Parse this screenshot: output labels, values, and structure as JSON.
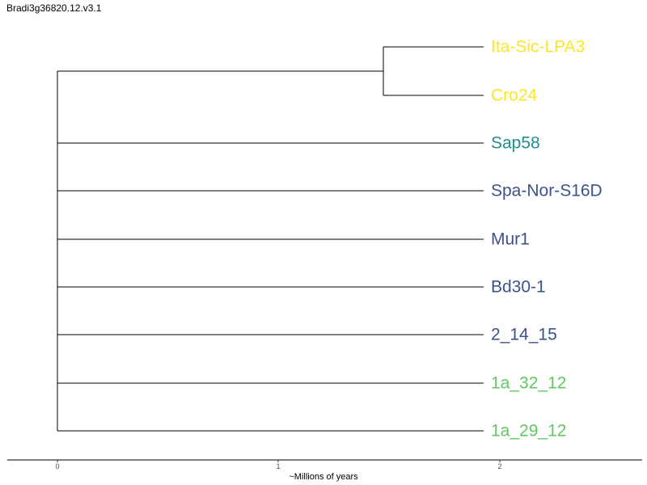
{
  "title": "Bradi3g36820.12.v3.1",
  "axis": {
    "label": "~Millions of years",
    "ticks": [
      "0",
      "1",
      "2"
    ]
  },
  "colors": {
    "yellow": "#fde725",
    "teal": "#21918c",
    "blue": "#3b528b",
    "green": "#5ec962",
    "branch": "#000000"
  },
  "tips": [
    {
      "label": "Ita-Sic-LPA3",
      "color": "#fde725"
    },
    {
      "label": "Cro24",
      "color": "#fde725"
    },
    {
      "label": "Sap58",
      "color": "#21918c"
    },
    {
      "label": "Spa-Nor-S16D",
      "color": "#3b528b"
    },
    {
      "label": "Mur1",
      "color": "#3b528b"
    },
    {
      "label": "Bd30-1",
      "color": "#3b528b"
    },
    {
      "label": "2_14_15",
      "color": "#3b528b"
    },
    {
      "label": "1a_32_12",
      "color": "#5ec962"
    },
    {
      "label": "1a_29_12",
      "color": "#5ec962"
    }
  ]
}
